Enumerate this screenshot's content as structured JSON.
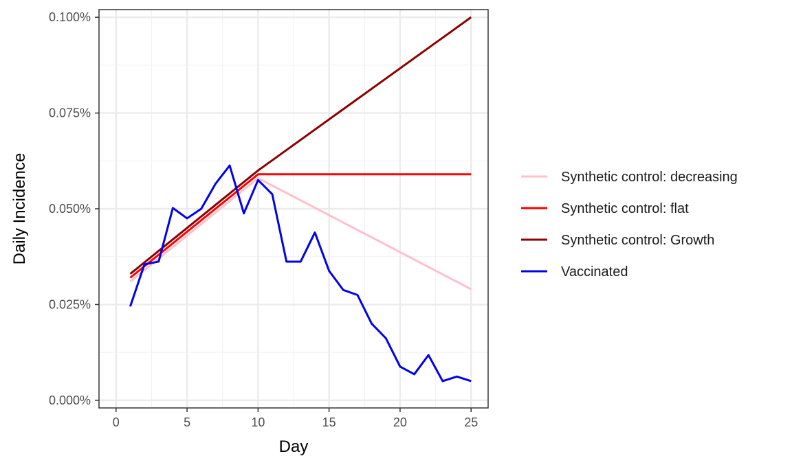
{
  "chart_data": {
    "type": "line",
    "title": "",
    "xlabel": "Day",
    "ylabel": "Daily Incidence",
    "xlim": [
      -1.2,
      26.2
    ],
    "ylim": [
      -0.002,
      0.102
    ],
    "x_ticks": [
      0,
      5,
      10,
      15,
      20,
      25
    ],
    "x_tick_labels": [
      "0",
      "5",
      "10",
      "15",
      "20",
      "25"
    ],
    "y_ticks": [
      0,
      0.025,
      0.05,
      0.075,
      0.1
    ],
    "y_tick_labels": [
      "0.000%",
      "0.025%",
      "0.050%",
      "0.075%",
      "0.100%"
    ],
    "grid": true,
    "legend_position": "right",
    "series": [
      {
        "name": "Synthetic control: decreasing",
        "color": "#FFC0CB",
        "x": [
          1,
          10,
          25
        ],
        "y": [
          0.031,
          0.058,
          0.029
        ]
      },
      {
        "name": "Synthetic control: flat",
        "color": "#FF0000",
        "x": [
          1,
          10,
          25
        ],
        "y": [
          0.032,
          0.059,
          0.059
        ]
      },
      {
        "name": "Synthetic control: Growth",
        "color": "#8B0000",
        "x": [
          1,
          10,
          25
        ],
        "y": [
          0.033,
          0.06,
          0.1
        ]
      },
      {
        "name": "Vaccinated",
        "color": "#0000EE",
        "x": [
          1,
          2,
          3,
          4,
          5,
          6,
          7,
          8,
          9,
          10,
          11,
          12,
          13,
          14,
          15,
          16,
          17,
          18,
          19,
          20,
          21,
          22,
          23,
          24,
          25
        ],
        "y": [
          0.0245,
          0.0355,
          0.0362,
          0.0502,
          0.0475,
          0.05,
          0.0565,
          0.0613,
          0.0488,
          0.0575,
          0.0538,
          0.0362,
          0.0362,
          0.0438,
          0.0338,
          0.0288,
          0.0275,
          0.02,
          0.0162,
          0.0088,
          0.0068,
          0.0118,
          0.005,
          0.0062,
          0.005
        ]
      }
    ]
  }
}
